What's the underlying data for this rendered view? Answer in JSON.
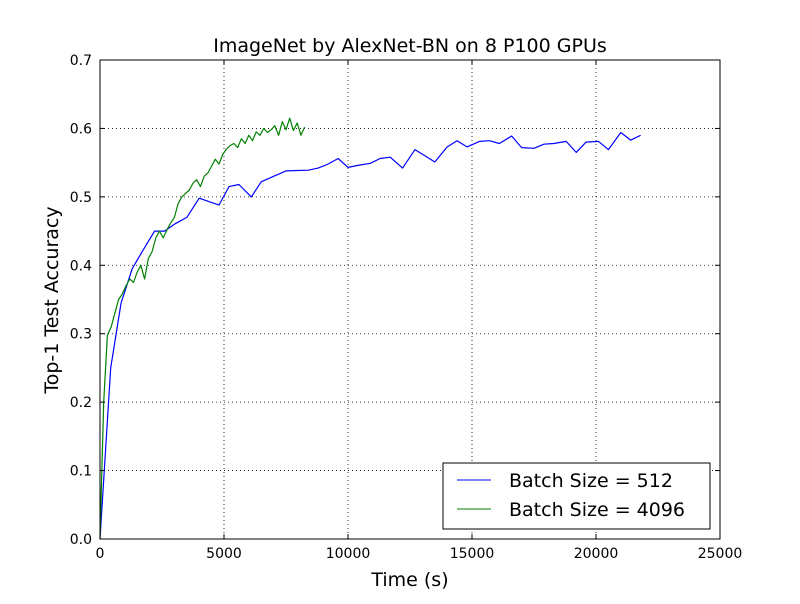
{
  "chart_data": {
    "type": "line",
    "title": "ImageNet by AlexNet-BN on 8 P100 GPUs",
    "xlabel": "Time (s)",
    "ylabel": "Top-1 Test Accuracy",
    "xlim": [
      0,
      25000
    ],
    "ylim": [
      0,
      0.7
    ],
    "xticks": [
      0,
      5000,
      10000,
      15000,
      20000,
      25000
    ],
    "xtick_labels": [
      "0",
      "5000",
      "10000",
      "15000",
      "20000",
      "25000"
    ],
    "yticks": [
      0.0,
      0.1,
      0.2,
      0.3,
      0.4,
      0.5,
      0.6,
      0.7
    ],
    "ytick_labels": [
      "0.0",
      "0.1",
      "0.2",
      "0.3",
      "0.4",
      "0.5",
      "0.6",
      "0.7"
    ],
    "grid": true,
    "legend_position": "lower-right",
    "series": [
      {
        "name": "Batch Size = 512",
        "color": "#0000ff",
        "x": [
          0,
          430,
          850,
          1300,
          1700,
          2200,
          2600,
          3000,
          3500,
          4000,
          4800,
          5200,
          5600,
          6100,
          6500,
          7000,
          7500,
          8400,
          8800,
          9200,
          9600,
          10000,
          10400,
          10900,
          11300,
          11700,
          12200,
          12700,
          13100,
          13500,
          14000,
          14400,
          14800,
          15300,
          15700,
          16100,
          16600,
          17000,
          17500,
          17900,
          18300,
          18800,
          19200,
          19600,
          20100,
          20500,
          21000,
          21400,
          21800
        ],
        "y": [
          0.0,
          0.25,
          0.345,
          0.395,
          0.42,
          0.45,
          0.45,
          0.46,
          0.47,
          0.498,
          0.488,
          0.515,
          0.518,
          0.5,
          0.522,
          0.53,
          0.538,
          0.539,
          0.542,
          0.548,
          0.556,
          0.543,
          0.546,
          0.549,
          0.556,
          0.558,
          0.542,
          0.569,
          0.56,
          0.551,
          0.573,
          0.582,
          0.573,
          0.581,
          0.582,
          0.578,
          0.589,
          0.572,
          0.571,
          0.577,
          0.578,
          0.581,
          0.565,
          0.58,
          0.581,
          0.569,
          0.594,
          0.583,
          0.59
        ]
      },
      {
        "name": "Batch Size = 4096",
        "color": "#008000",
        "x": [
          0,
          150,
          300,
          450,
          600,
          750,
          900,
          1050,
          1200,
          1350,
          1500,
          1650,
          1800,
          1950,
          2100,
          2250,
          2400,
          2550,
          2700,
          2850,
          3000,
          3150,
          3300,
          3450,
          3600,
          3750,
          3900,
          4050,
          4200,
          4350,
          4500,
          4650,
          4800,
          4950,
          5100,
          5250,
          5400,
          5550,
          5700,
          5850,
          6000,
          6150,
          6300,
          6450,
          6600,
          6750,
          6900,
          7050,
          7200,
          7350,
          7500,
          7650,
          7800,
          7950,
          8100,
          8250
        ],
        "y": [
          0.0,
          0.2,
          0.298,
          0.31,
          0.33,
          0.35,
          0.358,
          0.37,
          0.38,
          0.375,
          0.39,
          0.4,
          0.38,
          0.41,
          0.42,
          0.44,
          0.45,
          0.44,
          0.452,
          0.462,
          0.47,
          0.49,
          0.5,
          0.505,
          0.51,
          0.52,
          0.525,
          0.515,
          0.53,
          0.535,
          0.545,
          0.555,
          0.548,
          0.562,
          0.57,
          0.575,
          0.578,
          0.572,
          0.585,
          0.578,
          0.59,
          0.582,
          0.595,
          0.59,
          0.6,
          0.594,
          0.598,
          0.604,
          0.59,
          0.61,
          0.598,
          0.615,
          0.597,
          0.608,
          0.59,
          0.602
        ]
      }
    ]
  }
}
